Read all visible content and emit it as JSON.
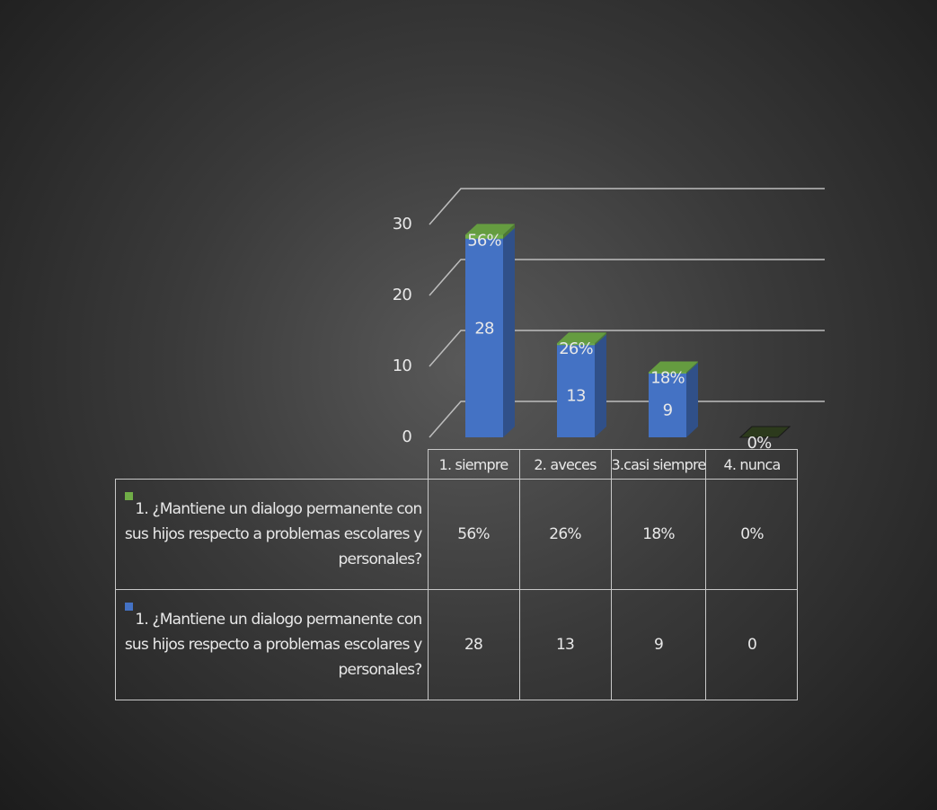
{
  "chart_data": {
    "type": "bar3d-stacked",
    "categories": [
      "1. siempre",
      "2. aveces",
      "3.casi siempre",
      "4. nunca"
    ],
    "series": [
      {
        "name": "1.   ¿Mantiene  un dialogo permanente con sus hijos respecto a problemas escolares y personales?",
        "color": "#4472c4",
        "values": [
          28,
          13,
          9,
          0
        ]
      },
      {
        "name": "1.   ¿Mantiene  un dialogo permanente con sus hijos respecto a problemas escolares y personales?",
        "color": "#70ad47",
        "values": [
          0.56,
          0.26,
          0.18,
          0
        ],
        "value_labels": [
          "56%",
          "26%",
          "18%",
          "0%"
        ]
      }
    ],
    "ylim": [
      0,
      30
    ],
    "yticks": [
      0,
      10,
      20,
      30
    ],
    "grid": true
  }
}
